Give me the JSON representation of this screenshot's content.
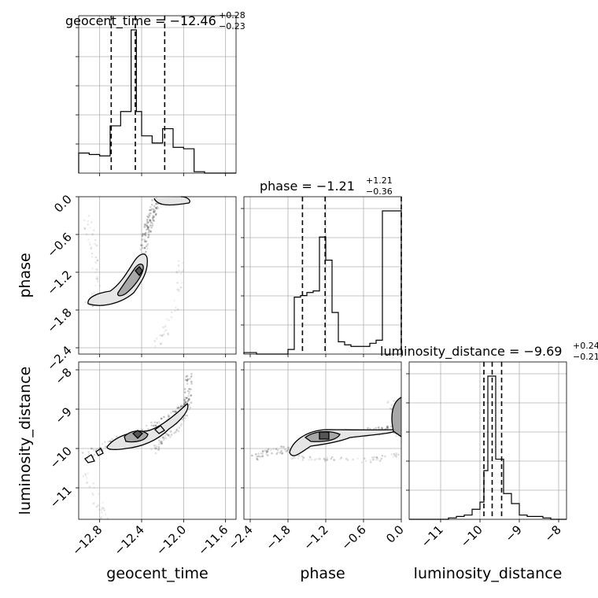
{
  "chart_data": {
    "type": "corner",
    "parameters": [
      "geocent_time",
      "phase",
      "luminosity_distance"
    ],
    "axis_labels": {
      "geocent_time": "geocent_time",
      "phase": "phase",
      "luminosity_distance": "luminosity_distance"
    },
    "ranges": {
      "geocent_time": [
        -13.0,
        -11.5
      ],
      "phase": [
        -2.5,
        0.0
      ],
      "luminosity_distance": [
        -11.8,
        -7.8
      ]
    },
    "ticks": {
      "geocent_time": [
        -12.8,
        -12.4,
        -12.0,
        -11.6
      ],
      "phase": [
        -2.4,
        -1.8,
        -1.2,
        -0.6,
        0.0
      ],
      "luminosity_distance": [
        -11,
        -10,
        -9,
        -8
      ]
    },
    "tick_labels": {
      "geocent_time": [
        "−12.8",
        "−12.4",
        "−12.0",
        "−11.6"
      ],
      "phase": [
        "−2.4",
        "−1.8",
        "−1.2",
        "−0.6",
        "0.0"
      ],
      "luminosity_distance": [
        "−11",
        "−10",
        "−9",
        "−8"
      ]
    },
    "titles": {
      "geocent_time": {
        "main": "geocent_time = −12.46",
        "sup": "+0.28",
        "sub": "−0.23"
      },
      "phase": {
        "main": "phase = −1.21",
        "sup": "+1.21",
        "sub": "−0.36"
      },
      "luminosity_distance": {
        "main": "luminosity_distance = −9.69",
        "sup": "+0.24",
        "sub": "−0.21"
      }
    },
    "quantiles": {
      "geocent_time": [
        -12.69,
        -12.46,
        -12.18
      ],
      "phase": [
        -1.57,
        -1.21,
        0.0
      ],
      "luminosity_distance": [
        -9.9,
        -9.69,
        -9.45
      ]
    },
    "histograms": {
      "geocent_time": {
        "edges": [
          -13.0,
          -12.9,
          -12.8,
          -12.7,
          -12.6,
          -12.5,
          -12.45,
          -12.4,
          -12.3,
          -12.2,
          -12.1,
          -12.0,
          -11.9,
          -11.8,
          -11.5
        ],
        "counts": [
          0.14,
          0.13,
          0.12,
          0.33,
          0.43,
          1.0,
          0.43,
          0.26,
          0.21,
          0.31,
          0.18,
          0.17,
          0.01,
          0.0
        ]
      },
      "phase": {
        "edges": [
          -2.5,
          -2.4,
          -2.3,
          -2.2,
          -2.1,
          -2.0,
          -1.9,
          -1.8,
          -1.7,
          -1.6,
          -1.5,
          -1.4,
          -1.3,
          -1.2,
          -1.1,
          -1.0,
          -0.9,
          -0.8,
          -0.7,
          -0.6,
          -0.5,
          -0.4,
          -0.3,
          -0.2,
          -0.1,
          0.0
        ],
        "counts": [
          0.01,
          0.01,
          0.0,
          0.0,
          0.0,
          0.0,
          0.0,
          0.03,
          0.37,
          0.38,
          0.4,
          0.41,
          0.76,
          0.61,
          0.27,
          0.08,
          0.06,
          0.05,
          0.05,
          0.05,
          0.07,
          0.09,
          0.93,
          0.93,
          0.93
        ]
      },
      "luminosity_distance": {
        "edges": [
          -11.8,
          -11.6,
          -11.4,
          -11.2,
          -11.0,
          -10.8,
          -10.6,
          -10.4,
          -10.2,
          -10.0,
          -9.9,
          -9.8,
          -9.7,
          -9.6,
          -9.4,
          -9.2,
          -9.0,
          -8.8,
          -8.6,
          -8.4,
          -8.2,
          -8.0,
          -7.8
        ],
        "counts": [
          0.0,
          0.0,
          0.0,
          0.0,
          0.0,
          0.01,
          0.02,
          0.03,
          0.07,
          0.12,
          0.34,
          1.0,
          1.0,
          0.42,
          0.18,
          0.11,
          0.03,
          0.02,
          0.02,
          0.01,
          0.0,
          0.0
        ]
      }
    },
    "grid": true,
    "scatter_density": "grey"
  }
}
